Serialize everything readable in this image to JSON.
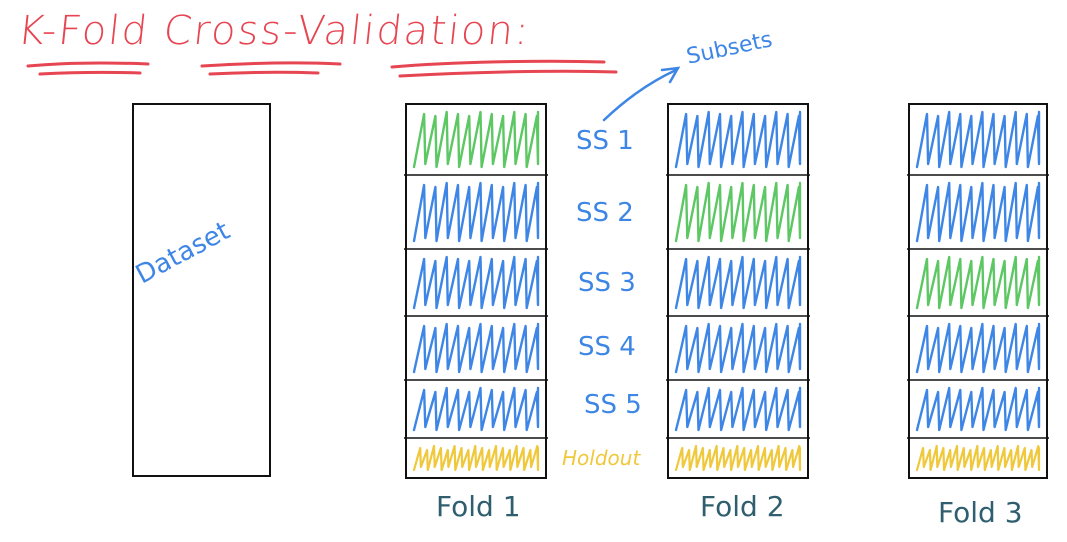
{
  "title": "K-Fold Cross-Validation:",
  "annotation": "Subsets",
  "dataset_label": "Dataset",
  "subset_labels": [
    "SS 1",
    "SS 2",
    "SS 3",
    "SS 4",
    "SS 5"
  ],
  "holdout_label": "Holdout",
  "folds": [
    {
      "label": "Fold 1",
      "green_subset": 1
    },
    {
      "label": "Fold 2",
      "green_subset": 2
    },
    {
      "label": "Fold 3",
      "green_subset": 3
    }
  ],
  "colors": {
    "title": "#e64552",
    "training": "#3e86e6",
    "validation": "#5cc763",
    "holdout": "#f0c83c",
    "fold_label": "#2f5f6f",
    "outline": "#111111"
  }
}
